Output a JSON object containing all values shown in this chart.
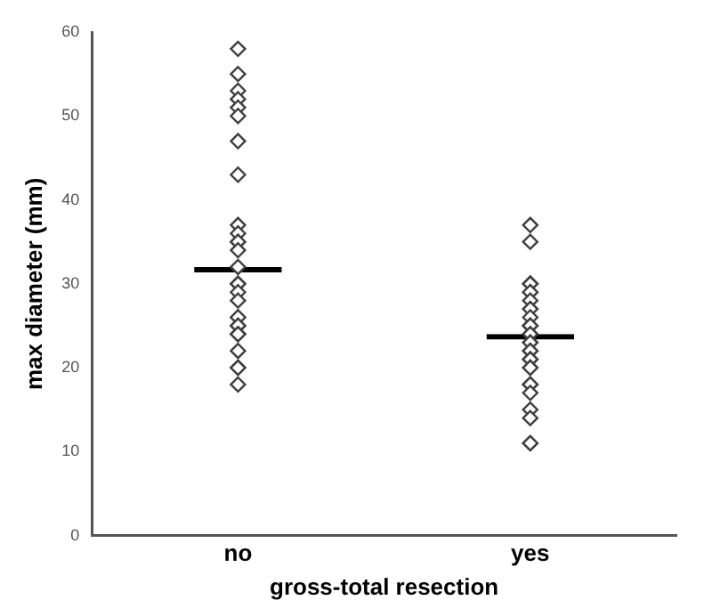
{
  "chart_data": {
    "type": "scatter",
    "categories": [
      "no",
      "yes"
    ],
    "xlabel": "gross-total resection",
    "ylabel": "max diameter (mm)",
    "ylim": [
      0,
      60
    ],
    "yticks": [
      0,
      10,
      20,
      30,
      40,
      50,
      60
    ],
    "grid": false,
    "legend": false,
    "series": [
      {
        "marker": "diamond",
        "color": "#404040",
        "x": [
          "no",
          "no",
          "no",
          "no",
          "no",
          "no",
          "no",
          "no",
          "no",
          "no",
          "no",
          "no",
          "no",
          "no",
          "no",
          "no",
          "no",
          "no",
          "no",
          "no",
          "no",
          "no",
          "no",
          "no",
          "no",
          "no",
          "no",
          "no",
          "no",
          "no",
          "yes",
          "yes",
          "yes",
          "yes",
          "yes",
          "yes",
          "yes",
          "yes",
          "yes",
          "yes",
          "yes",
          "yes",
          "yes",
          "yes",
          "yes",
          "yes",
          "yes",
          "yes",
          "yes",
          "yes",
          "yes",
          "yes",
          "yes",
          "yes",
          "yes",
          "yes",
          "yes",
          "yes",
          "yes",
          "yes",
          "yes",
          "yes",
          "yes"
        ],
        "values": [
          58,
          55,
          53,
          52,
          51,
          50,
          47,
          43,
          37,
          36,
          35,
          35,
          34,
          32,
          30,
          30,
          30,
          29,
          28,
          26,
          26,
          25,
          25,
          24,
          24,
          24,
          22,
          20,
          20,
          18,
          37,
          35,
          30,
          30,
          30,
          29,
          29,
          28,
          27,
          27,
          26,
          25,
          25,
          25,
          24,
          24,
          23,
          23,
          22,
          22,
          21,
          21,
          21,
          20,
          20,
          18,
          18,
          18,
          17,
          15,
          14,
          11,
          11
        ]
      },
      {
        "type": "bar",
        "color": "#000000",
        "values": [
          32,
          24
        ]
      }
    ]
  }
}
